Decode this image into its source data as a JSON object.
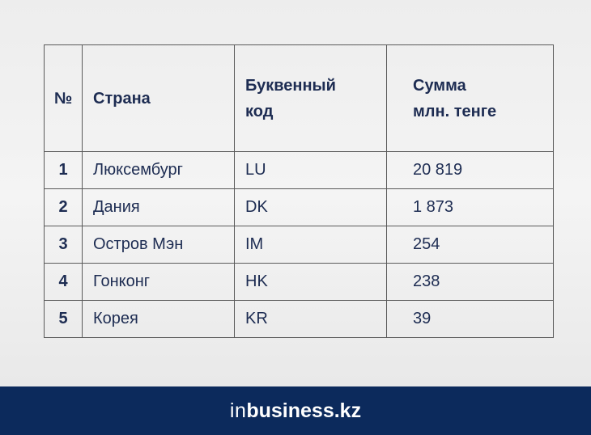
{
  "table": {
    "header": [
      "№",
      "Страна",
      "Буквенный\nкод",
      "Сумма\nмлн. тенге"
    ],
    "rows": [
      [
        "1",
        "Люксембург",
        "LU",
        "20 819"
      ],
      [
        "2",
        "Дания",
        "DK",
        "1 873"
      ],
      [
        "3",
        "Остров Мэн",
        "IM",
        "254"
      ],
      [
        "4",
        "Гонконг",
        "HK",
        "238"
      ],
      [
        "5",
        "Корея",
        "KR",
        "39"
      ]
    ]
  },
  "footer": {
    "logo": [
      "in",
      "business.kz"
    ]
  }
}
